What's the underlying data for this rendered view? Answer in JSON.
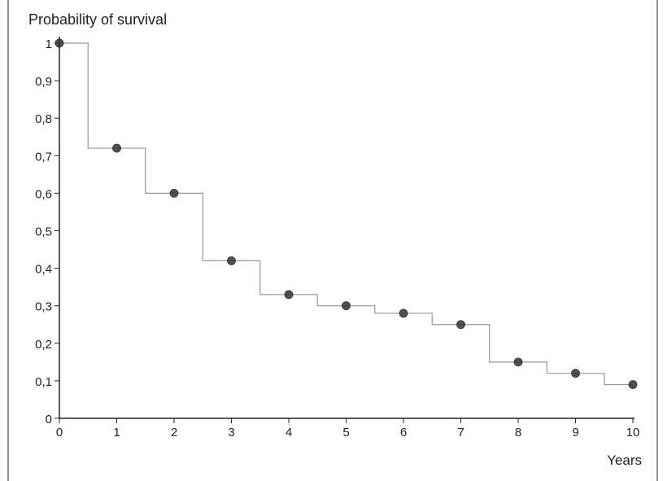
{
  "chart_data": {
    "type": "line",
    "subtype": "step",
    "title": "",
    "ylabel": "Probability of survival",
    "xlabel": "Years",
    "xlim": [
      0,
      10
    ],
    "ylim": [
      0,
      1
    ],
    "x_ticks": [
      0,
      1,
      2,
      3,
      4,
      5,
      6,
      7,
      8,
      9,
      10
    ],
    "x_tick_labels": [
      "0",
      "1",
      "2",
      "3",
      "4",
      "5",
      "6",
      "7",
      "8",
      "9",
      "10"
    ],
    "y_ticks": [
      0,
      0.1,
      0.2,
      0.3,
      0.4,
      0.5,
      0.6,
      0.7,
      0.8,
      0.9,
      1
    ],
    "y_tick_labels": [
      "0",
      "0,1",
      "0,2",
      "0,3",
      "0,4",
      "0,5",
      "0,6",
      "0,7",
      "0,8",
      "0,9",
      "1"
    ],
    "grid": false,
    "series": [
      {
        "x": [
          0,
          1,
          2,
          3,
          4,
          5,
          6,
          7,
          8,
          9,
          10
        ],
        "y": [
          1.0,
          0.72,
          0.6,
          0.42,
          0.33,
          0.3,
          0.28,
          0.25,
          0.15,
          0.12,
          0.09
        ],
        "step_where": "mid",
        "color": "#999999",
        "marker_color": "#333333"
      }
    ]
  }
}
